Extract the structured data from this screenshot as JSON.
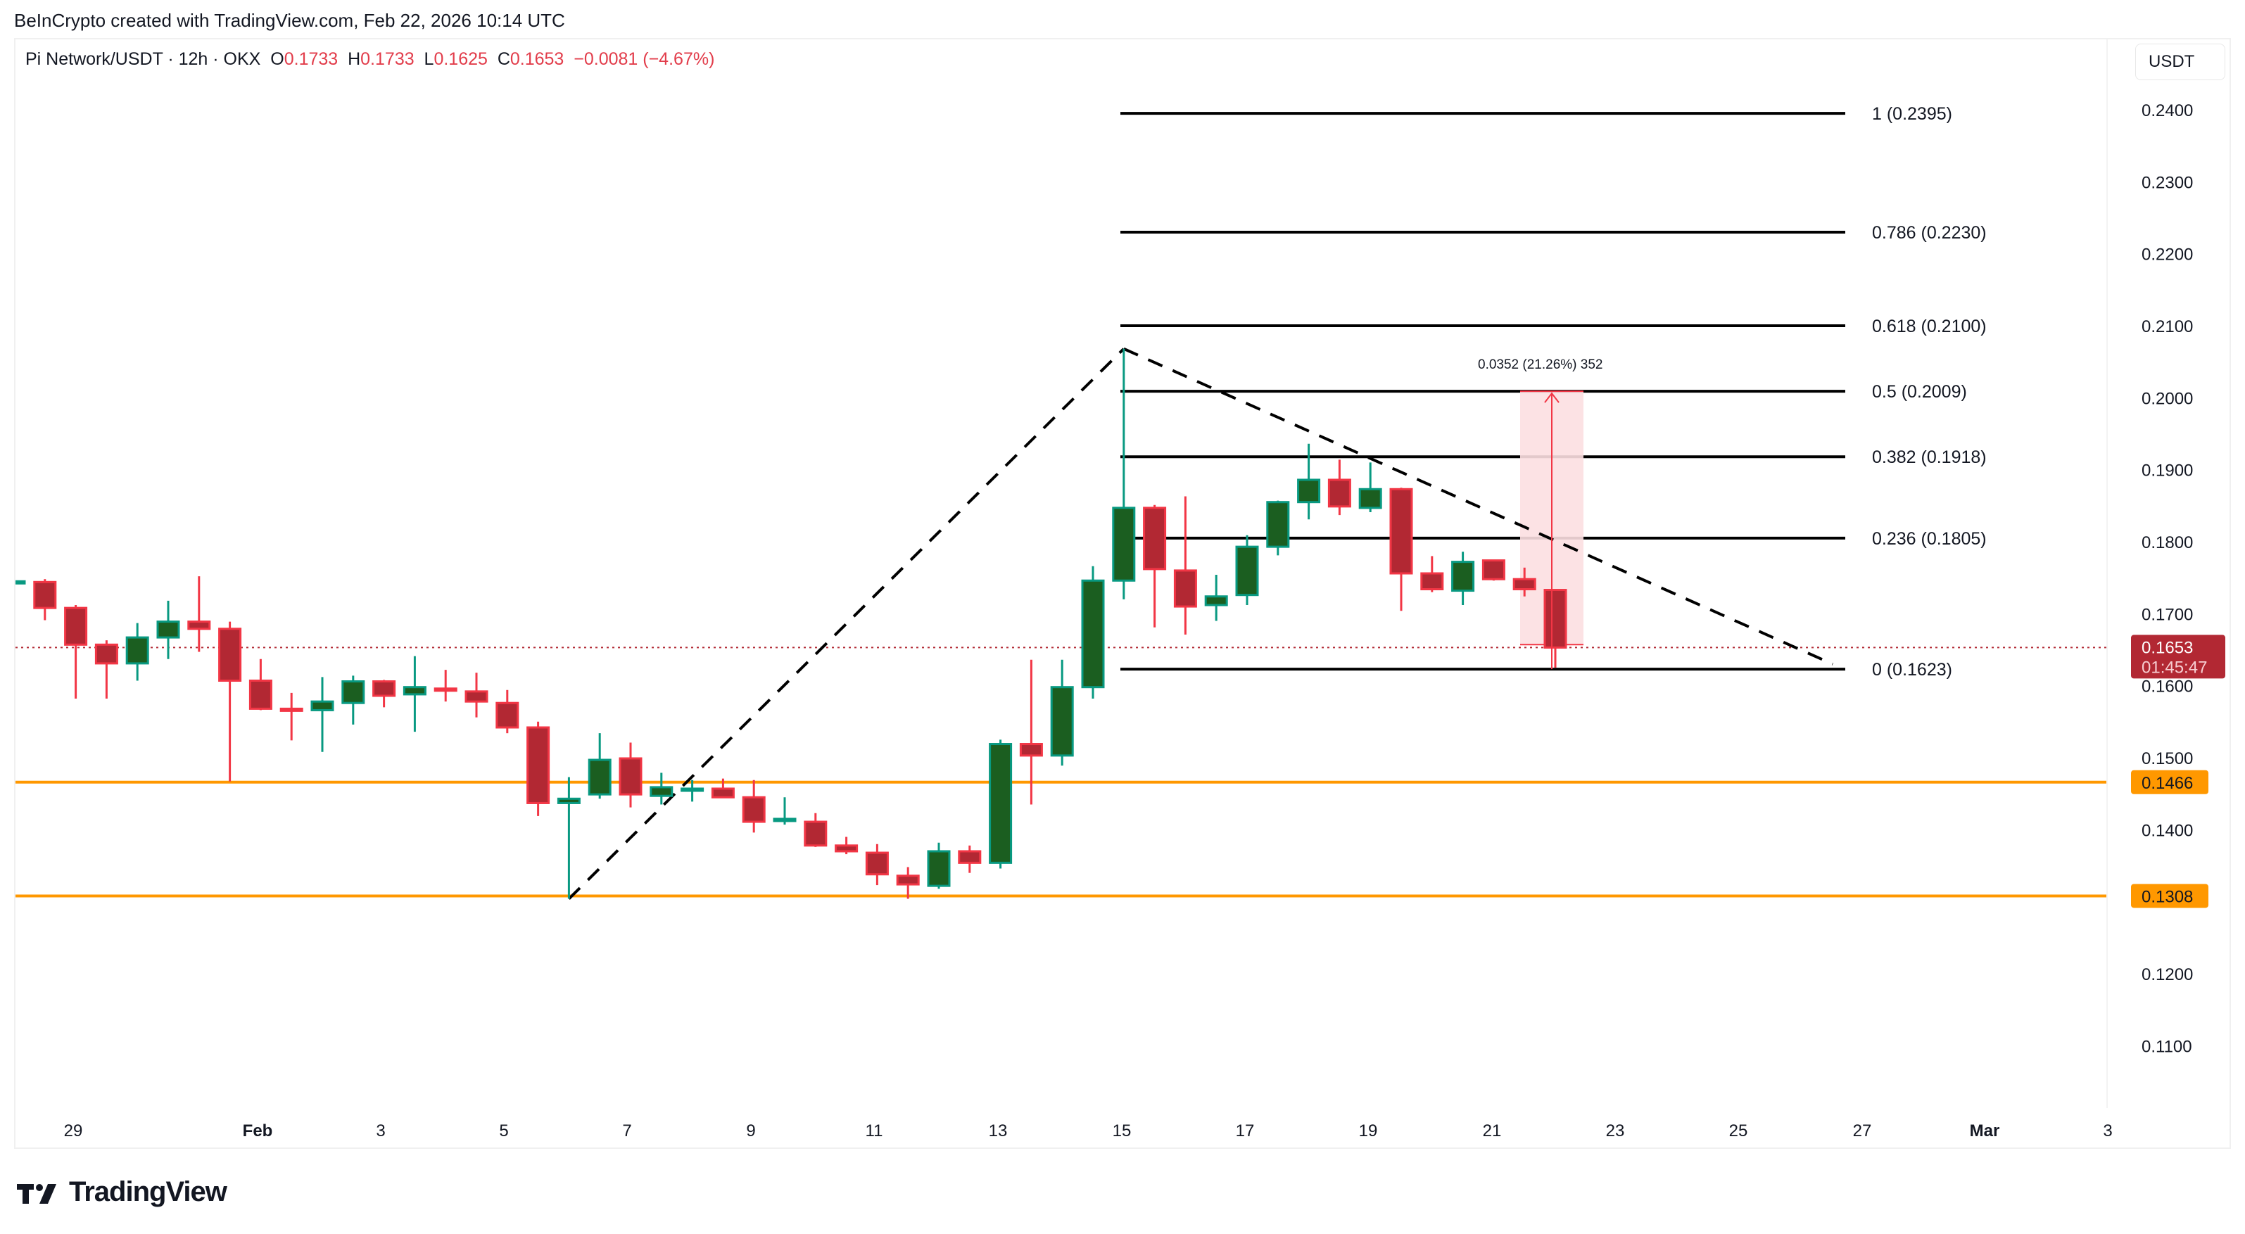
{
  "attribution": "BeInCrypto created with TradingView.com, Feb 22, 2026 10:14 UTC",
  "legend": {
    "symbol": "Pi Network/USDT · 12h · OKX",
    "open_label": "O",
    "open": "0.1733",
    "high_label": "H",
    "high": "0.1733",
    "low_label": "L",
    "low": "0.1625",
    "close_label": "C",
    "close": "0.1653",
    "change": "−0.0081 (−4.67%)"
  },
  "price_axis": {
    "unit": "USDT",
    "ticks": [
      "0.2400",
      "0.2300",
      "0.2200",
      "0.2100",
      "0.2000",
      "0.1900",
      "0.1800",
      "0.1700",
      "0.1600",
      "0.1500",
      "0.1400",
      "0.1300",
      "0.1200",
      "0.1100"
    ],
    "current_price": "0.1653",
    "countdown": "01:45:47",
    "support_labels": [
      "0.1466",
      "0.1308"
    ]
  },
  "time_axis": {
    "labels": [
      "29",
      "Feb",
      "3",
      "5",
      "7",
      "9",
      "11",
      "13",
      "15",
      "17",
      "19",
      "21",
      "23",
      "25",
      "27",
      "Mar",
      "3"
    ]
  },
  "colors": {
    "up_body": "#1b5e20",
    "up_border": "#089981",
    "down_body": "#b22833",
    "down_border": "#f23645",
    "support": "#ff9800",
    "price_line": "#b22833",
    "measure_fill": "#fcdfe1",
    "measure_line": "#f23645"
  },
  "logo": {
    "text": "TradingView"
  },
  "chart_data": {
    "type": "candlestick",
    "title": "Pi Network/USDT · 12h · OKX",
    "xlabel": "",
    "ylabel": "USDT",
    "ylim": [
      0.105,
      0.2415
    ],
    "candles": [
      {
        "o": 0.1745,
        "h": 0.1747,
        "l": 0.1744,
        "c": 0.1745
      },
      {
        "o": 0.1744,
        "h": 0.1748,
        "l": 0.1691,
        "c": 0.1708
      },
      {
        "o": 0.1708,
        "h": 0.1712,
        "l": 0.1582,
        "c": 0.1657
      },
      {
        "o": 0.1657,
        "h": 0.1663,
        "l": 0.1582,
        "c": 0.1631
      },
      {
        "o": 0.1631,
        "h": 0.1687,
        "l": 0.1607,
        "c": 0.1667
      },
      {
        "o": 0.1667,
        "h": 0.1718,
        "l": 0.1637,
        "c": 0.1689
      },
      {
        "o": 0.1689,
        "h": 0.1752,
        "l": 0.1647,
        "c": 0.1679
      },
      {
        "o": 0.1679,
        "h": 0.1689,
        "l": 0.1467,
        "c": 0.1607
      },
      {
        "o": 0.1607,
        "h": 0.1637,
        "l": 0.1566,
        "c": 0.1568
      },
      {
        "o": 0.1568,
        "h": 0.159,
        "l": 0.1524,
        "c": 0.1566
      },
      {
        "o": 0.1566,
        "h": 0.1612,
        "l": 0.1508,
        "c": 0.1578
      },
      {
        "o": 0.1576,
        "h": 0.1614,
        "l": 0.1546,
        "c": 0.1606
      },
      {
        "o": 0.1606,
        "h": 0.1608,
        "l": 0.157,
        "c": 0.1586
      },
      {
        "o": 0.1588,
        "h": 0.1641,
        "l": 0.1536,
        "c": 0.1598
      },
      {
        "o": 0.1596,
        "h": 0.1622,
        "l": 0.1578,
        "c": 0.1594
      },
      {
        "o": 0.1592,
        "h": 0.1618,
        "l": 0.1556,
        "c": 0.1578
      },
      {
        "o": 0.1576,
        "h": 0.1594,
        "l": 0.1534,
        "c": 0.1542
      },
      {
        "o": 0.1542,
        "h": 0.155,
        "l": 0.1419,
        "c": 0.1437
      },
      {
        "o": 0.1437,
        "h": 0.1473,
        "l": 0.1304,
        "c": 0.1443
      },
      {
        "o": 0.1449,
        "h": 0.1534,
        "l": 0.1443,
        "c": 0.1497
      },
      {
        "o": 0.1499,
        "h": 0.1521,
        "l": 0.1431,
        "c": 0.1449
      },
      {
        "o": 0.1447,
        "h": 0.1479,
        "l": 0.1435,
        "c": 0.1459
      },
      {
        "o": 0.1457,
        "h": 0.1469,
        "l": 0.1439,
        "c": 0.1457
      },
      {
        "o": 0.1457,
        "h": 0.1471,
        "l": 0.1445,
        "c": 0.1445
      },
      {
        "o": 0.1445,
        "h": 0.1469,
        "l": 0.1396,
        "c": 0.1411
      },
      {
        "o": 0.1415,
        "h": 0.1445,
        "l": 0.1407,
        "c": 0.1415
      },
      {
        "o": 0.1411,
        "h": 0.1423,
        "l": 0.1376,
        "c": 0.1378
      },
      {
        "o": 0.1378,
        "h": 0.139,
        "l": 0.1366,
        "c": 0.137
      },
      {
        "o": 0.1368,
        "h": 0.138,
        "l": 0.1323,
        "c": 0.1338
      },
      {
        "o": 0.1336,
        "h": 0.1348,
        "l": 0.1304,
        "c": 0.1324
      },
      {
        "o": 0.1322,
        "h": 0.1382,
        "l": 0.1318,
        "c": 0.137
      },
      {
        "o": 0.137,
        "h": 0.1378,
        "l": 0.134,
        "c": 0.1354
      },
      {
        "o": 0.1354,
        "h": 0.1525,
        "l": 0.1346,
        "c": 0.1519
      },
      {
        "o": 0.1519,
        "h": 0.1636,
        "l": 0.1435,
        "c": 0.1503
      },
      {
        "o": 0.1503,
        "h": 0.1636,
        "l": 0.1489,
        "c": 0.1598
      },
      {
        "o": 0.1598,
        "h": 0.1766,
        "l": 0.1582,
        "c": 0.1746
      },
      {
        "o": 0.1746,
        "h": 0.2068,
        "l": 0.172,
        "c": 0.1847
      },
      {
        "o": 0.1847,
        "h": 0.1851,
        "l": 0.1681,
        "c": 0.1762
      },
      {
        "o": 0.176,
        "h": 0.1863,
        "l": 0.1671,
        "c": 0.171
      },
      {
        "o": 0.1712,
        "h": 0.1754,
        "l": 0.169,
        "c": 0.1724
      },
      {
        "o": 0.1726,
        "h": 0.1809,
        "l": 0.1712,
        "c": 0.1793
      },
      {
        "o": 0.1793,
        "h": 0.1857,
        "l": 0.1781,
        "c": 0.1855
      },
      {
        "o": 0.1855,
        "h": 0.1936,
        "l": 0.1831,
        "c": 0.1886
      },
      {
        "o": 0.1886,
        "h": 0.1914,
        "l": 0.1837,
        "c": 0.1849
      },
      {
        "o": 0.1847,
        "h": 0.191,
        "l": 0.1841,
        "c": 0.1873
      },
      {
        "o": 0.1873,
        "h": 0.1875,
        "l": 0.1704,
        "c": 0.1756
      },
      {
        "o": 0.1756,
        "h": 0.178,
        "l": 0.173,
        "c": 0.1734
      },
      {
        "o": 0.1732,
        "h": 0.1786,
        "l": 0.1712,
        "c": 0.1772
      },
      {
        "o": 0.1774,
        "h": 0.1774,
        "l": 0.1746,
        "c": 0.1748
      },
      {
        "o": 0.1748,
        "h": 0.1764,
        "l": 0.1724,
        "c": 0.1734
      },
      {
        "o": 0.1733,
        "h": 0.1733,
        "l": 0.1625,
        "c": 0.1653
      }
    ],
    "fib_levels": [
      {
        "ratio": "1",
        "price": 0.2395,
        "label": "1 (0.2395)"
      },
      {
        "ratio": "0.786",
        "price": 0.223,
        "label": "0.786 (0.2230)"
      },
      {
        "ratio": "0.618",
        "price": 0.21,
        "label": "0.618 (0.2100)"
      },
      {
        "ratio": "0.5",
        "price": 0.2009,
        "label": "0.5 (0.2009)"
      },
      {
        "ratio": "0.382",
        "price": 0.1918,
        "label": "0.382 (0.1918)"
      },
      {
        "ratio": "0.236",
        "price": 0.1805,
        "label": "0.236 (0.1805)"
      },
      {
        "ratio": "0",
        "price": 0.1623,
        "label": "0 (0.1623)"
      }
    ],
    "support_levels": [
      0.1466,
      0.1308
    ],
    "measure": {
      "from": 0.1657,
      "to": 0.2009,
      "label": "0.0352 (21.26%) 352"
    },
    "trendlines": [
      {
        "style": "dashed",
        "from": {
          "candle": 18,
          "price": 0.1304
        },
        "to": {
          "candle": 36,
          "price": 0.2068
        }
      },
      {
        "style": "dashed",
        "from": {
          "candle": 36,
          "price": 0.2068
        },
        "to": {
          "candle": 59,
          "price": 0.163
        }
      }
    ]
  }
}
